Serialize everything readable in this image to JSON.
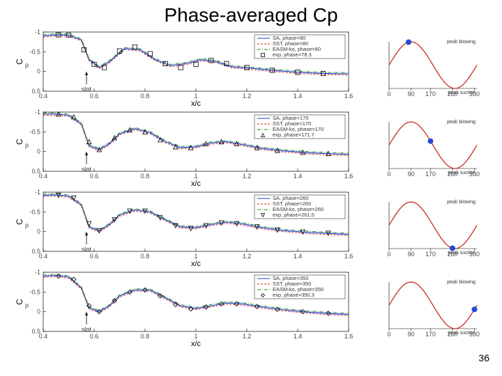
{
  "title": "Phase-averaged Cp",
  "page_number": "36",
  "cp_common": {
    "xlabel": "x/c",
    "ylabel_tex": "Cp",
    "xlim": [
      0.4,
      1.6
    ],
    "ylim": [
      -1.0,
      0.5
    ],
    "xticks": [
      0.4,
      0.6,
      0.8,
      1.0,
      1.2,
      1.4,
      1.6
    ],
    "yticks": [
      -1.0,
      -0.5,
      0.0,
      0.5
    ],
    "grid_color": "#cccccc",
    "background": "#ffffff",
    "slot_label": "slot",
    "slot_x": 0.57,
    "line_styles": {
      "SA": {
        "color": "#1b3fca",
        "dash": "",
        "width": 1.2
      },
      "SST": {
        "color": "#d63a2e",
        "dash": "3,2",
        "width": 1.0
      },
      "EASM": {
        "color": "#2a8a2a",
        "dash": "5,2,1,2",
        "width": 1.0
      },
      "exp": {
        "color": "#000000",
        "marker_size": 3.2
      }
    }
  },
  "cp_panels": [
    {
      "phase": 80,
      "legend": [
        "SA, phase=80",
        "SST, phase=80",
        "EASM-ko, phase=80",
        "exp, phase=78.3"
      ],
      "marker": "square",
      "curve": [
        [
          0.4,
          -0.9
        ],
        [
          0.45,
          -0.93
        ],
        [
          0.5,
          -0.92
        ],
        [
          0.55,
          -0.8
        ],
        [
          0.58,
          -0.3
        ],
        [
          0.62,
          -0.1
        ],
        [
          0.66,
          -0.25
        ],
        [
          0.72,
          -0.58
        ],
        [
          0.78,
          -0.55
        ],
        [
          0.84,
          -0.3
        ],
        [
          0.9,
          -0.15
        ],
        [
          0.96,
          -0.2
        ],
        [
          1.02,
          -0.3
        ],
        [
          1.08,
          -0.25
        ],
        [
          1.14,
          -0.12
        ],
        [
          1.22,
          -0.08
        ],
        [
          1.3,
          -0.03
        ],
        [
          1.4,
          0.02
        ],
        [
          1.5,
          0.05
        ],
        [
          1.6,
          0.06
        ]
      ],
      "exp_pts": [
        [
          0.46,
          -0.93
        ],
        [
          0.5,
          -0.92
        ],
        [
          0.56,
          -0.55
        ],
        [
          0.6,
          -0.18
        ],
        [
          0.64,
          -0.1
        ],
        [
          0.7,
          -0.52
        ],
        [
          0.76,
          -0.62
        ],
        [
          0.82,
          -0.45
        ],
        [
          0.88,
          -0.2
        ],
        [
          0.94,
          -0.1
        ],
        [
          1.0,
          -0.18
        ],
        [
          1.06,
          -0.28
        ],
        [
          1.12,
          -0.2
        ],
        [
          1.2,
          -0.1
        ],
        [
          1.3,
          -0.03
        ],
        [
          1.4,
          0.02
        ],
        [
          1.5,
          0.05
        ]
      ]
    },
    {
      "phase": 170,
      "legend": [
        "SA, phase=170",
        "SST, phase=170",
        "EASM-ko, phase=170",
        "exp, phase=171.7"
      ],
      "marker": "triangle",
      "curve": [
        [
          0.4,
          -0.95
        ],
        [
          0.45,
          -0.95
        ],
        [
          0.5,
          -0.92
        ],
        [
          0.55,
          -0.7
        ],
        [
          0.58,
          -0.15
        ],
        [
          0.62,
          -0.05
        ],
        [
          0.66,
          -0.2
        ],
        [
          0.7,
          -0.45
        ],
        [
          0.76,
          -0.58
        ],
        [
          0.82,
          -0.48
        ],
        [
          0.88,
          -0.25
        ],
        [
          0.94,
          -0.1
        ],
        [
          1.0,
          -0.12
        ],
        [
          1.06,
          -0.22
        ],
        [
          1.12,
          -0.25
        ],
        [
          1.18,
          -0.18
        ],
        [
          1.26,
          -0.08
        ],
        [
          1.34,
          -0.02
        ],
        [
          1.44,
          0.03
        ],
        [
          1.54,
          0.06
        ],
        [
          1.6,
          0.07
        ]
      ],
      "exp_pts": [
        [
          0.46,
          -0.95
        ],
        [
          0.52,
          -0.88
        ],
        [
          0.58,
          -0.25
        ],
        [
          0.62,
          -0.05
        ],
        [
          0.68,
          -0.35
        ],
        [
          0.74,
          -0.55
        ],
        [
          0.8,
          -0.5
        ],
        [
          0.86,
          -0.3
        ],
        [
          0.92,
          -0.12
        ],
        [
          0.98,
          -0.1
        ],
        [
          1.04,
          -0.2
        ],
        [
          1.1,
          -0.25
        ],
        [
          1.16,
          -0.2
        ],
        [
          1.24,
          -0.1
        ],
        [
          1.32,
          -0.03
        ],
        [
          1.42,
          0.02
        ],
        [
          1.52,
          0.05
        ]
      ]
    },
    {
      "phase": 260,
      "legend": [
        "SA, phase=260",
        "SST, phase=260",
        "EASM-ko, phase=260",
        "exp, phase=261.0"
      ],
      "marker": "triangle-down",
      "curve": [
        [
          0.4,
          -0.92
        ],
        [
          0.45,
          -0.93
        ],
        [
          0.5,
          -0.9
        ],
        [
          0.55,
          -0.68
        ],
        [
          0.58,
          -0.12
        ],
        [
          0.62,
          -0.02
        ],
        [
          0.66,
          -0.18
        ],
        [
          0.7,
          -0.42
        ],
        [
          0.76,
          -0.55
        ],
        [
          0.82,
          -0.5
        ],
        [
          0.88,
          -0.3
        ],
        [
          0.94,
          -0.12
        ],
        [
          1.0,
          -0.1
        ],
        [
          1.06,
          -0.18
        ],
        [
          1.12,
          -0.24
        ],
        [
          1.18,
          -0.2
        ],
        [
          1.26,
          -0.1
        ],
        [
          1.34,
          -0.03
        ],
        [
          1.44,
          0.02
        ],
        [
          1.54,
          0.05
        ],
        [
          1.6,
          0.07
        ]
      ],
      "exp_pts": [
        [
          0.46,
          -0.92
        ],
        [
          0.52,
          -0.85
        ],
        [
          0.58,
          -0.2
        ],
        [
          0.62,
          -0.02
        ],
        [
          0.68,
          -0.3
        ],
        [
          0.74,
          -0.52
        ],
        [
          0.8,
          -0.52
        ],
        [
          0.86,
          -0.35
        ],
        [
          0.92,
          -0.15
        ],
        [
          0.98,
          -0.08
        ],
        [
          1.04,
          -0.15
        ],
        [
          1.1,
          -0.22
        ],
        [
          1.16,
          -0.2
        ],
        [
          1.24,
          -0.12
        ],
        [
          1.32,
          -0.04
        ],
        [
          1.42,
          0.01
        ],
        [
          1.52,
          0.04
        ]
      ]
    },
    {
      "phase": 350,
      "legend": [
        "SA, phase=350",
        "SST, phase=350",
        "EASM-ko, phase=350",
        "exp, phase=350.3"
      ],
      "marker": "diamond",
      "curve": [
        [
          0.4,
          -0.9
        ],
        [
          0.45,
          -0.92
        ],
        [
          0.5,
          -0.88
        ],
        [
          0.55,
          -0.6
        ],
        [
          0.58,
          -0.1
        ],
        [
          0.62,
          0.0
        ],
        [
          0.66,
          -0.15
        ],
        [
          0.7,
          -0.4
        ],
        [
          0.76,
          -0.55
        ],
        [
          0.82,
          -0.55
        ],
        [
          0.88,
          -0.35
        ],
        [
          0.94,
          -0.15
        ],
        [
          1.0,
          -0.08
        ],
        [
          1.06,
          -0.15
        ],
        [
          1.12,
          -0.22
        ],
        [
          1.18,
          -0.2
        ],
        [
          1.26,
          -0.12
        ],
        [
          1.34,
          -0.05
        ],
        [
          1.44,
          0.01
        ],
        [
          1.54,
          0.05
        ],
        [
          1.6,
          0.07
        ]
      ],
      "exp_pts": [
        [
          0.46,
          -0.9
        ],
        [
          0.52,
          -0.82
        ],
        [
          0.58,
          -0.15
        ],
        [
          0.62,
          0.0
        ],
        [
          0.68,
          -0.28
        ],
        [
          0.74,
          -0.5
        ],
        [
          0.8,
          -0.55
        ],
        [
          0.86,
          -0.4
        ],
        [
          0.92,
          -0.18
        ],
        [
          0.98,
          -0.07
        ],
        [
          1.04,
          -0.12
        ],
        [
          1.1,
          -0.2
        ],
        [
          1.16,
          -0.2
        ],
        [
          1.24,
          -0.13
        ],
        [
          1.32,
          -0.06
        ],
        [
          1.42,
          0.0
        ],
        [
          1.52,
          0.04
        ]
      ]
    }
  ],
  "phase_common": {
    "xlim": [
      0,
      360
    ],
    "ylim": [
      -1,
      1
    ],
    "xticks": [
      0,
      90,
      170,
      260,
      350
    ],
    "xtick_labels": [
      "0",
      "90",
      "170",
      "260",
      "350"
    ],
    "curve_color": "#cc2a20",
    "marker_color": "#2549d6",
    "marker_radius": 4,
    "label_top": "peak blowing",
    "label_bot": "peak suction"
  },
  "phase_panels": [
    {
      "marker_phase": 80,
      "marker_y": 0.985
    },
    {
      "marker_phase": 170,
      "marker_y": 0.174
    },
    {
      "marker_phase": 260,
      "marker_y": -0.985
    },
    {
      "marker_phase": 350,
      "marker_y": -0.174
    }
  ]
}
